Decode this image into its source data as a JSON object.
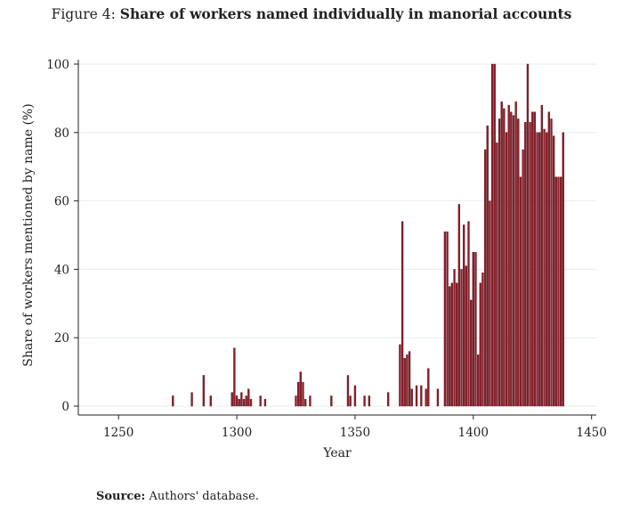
{
  "figure": {
    "label": "Figure 4:",
    "title": "Share of workers named individually in manorial accounts"
  },
  "source": {
    "label": "Source:",
    "text": "Authors' database."
  },
  "chart_data": {
    "type": "bar",
    "xlabel": "Year",
    "ylabel": "Share of workers mentioned by name (%)",
    "xlim": [
      1233,
      1452
    ],
    "ylim": [
      0,
      100
    ],
    "xticks": [
      1250,
      1300,
      1350,
      1400,
      1450
    ],
    "yticks": [
      0,
      20,
      40,
      60,
      80,
      100
    ],
    "grid": true,
    "legend": "none",
    "bar_color": "#8b1f2a",
    "bar_edge_color": "#5a0f18",
    "x": [
      1273,
      1281,
      1286,
      1289,
      1298,
      1299,
      1300,
      1301,
      1302,
      1303,
      1304,
      1305,
      1306,
      1310,
      1312,
      1325,
      1326,
      1327,
      1328,
      1329,
      1331,
      1340,
      1347,
      1348,
      1350,
      1354,
      1356,
      1364,
      1369,
      1370,
      1371,
      1372,
      1373,
      1374,
      1376,
      1378,
      1380,
      1381,
      1385,
      1388,
      1389,
      1390,
      1391,
      1392,
      1393,
      1394,
      1395,
      1396,
      1397,
      1398,
      1399,
      1400,
      1401,
      1402,
      1403,
      1404,
      1405,
      1406,
      1407,
      1408,
      1409,
      1410,
      1411,
      1412,
      1413,
      1414,
      1415,
      1416,
      1417,
      1418,
      1419,
      1420,
      1421,
      1422,
      1423,
      1424,
      1425,
      1426,
      1427,
      1428,
      1429,
      1430,
      1431,
      1432,
      1433,
      1434,
      1435,
      1436,
      1437,
      1438
    ],
    "values": [
      3,
      4,
      9,
      3,
      4,
      17,
      3,
      2,
      4,
      2,
      3,
      5,
      2,
      3,
      2,
      3,
      7,
      10,
      7,
      2,
      3,
      3,
      9,
      3,
      6,
      3,
      3,
      4,
      18,
      54,
      14,
      15,
      16,
      5,
      6,
      6,
      5,
      11,
      5,
      51,
      51,
      35,
      36,
      40,
      36,
      59,
      40,
      53,
      41,
      54,
      31,
      45,
      45,
      15,
      36,
      39,
      75,
      82,
      60,
      100,
      100,
      77,
      84,
      89,
      87,
      80,
      88,
      86,
      85,
      89,
      84,
      67,
      75,
      83,
      100,
      83,
      86,
      86,
      80,
      80,
      88,
      81,
      80,
      86,
      84,
      79,
      67,
      67,
      67,
      80
    ]
  }
}
